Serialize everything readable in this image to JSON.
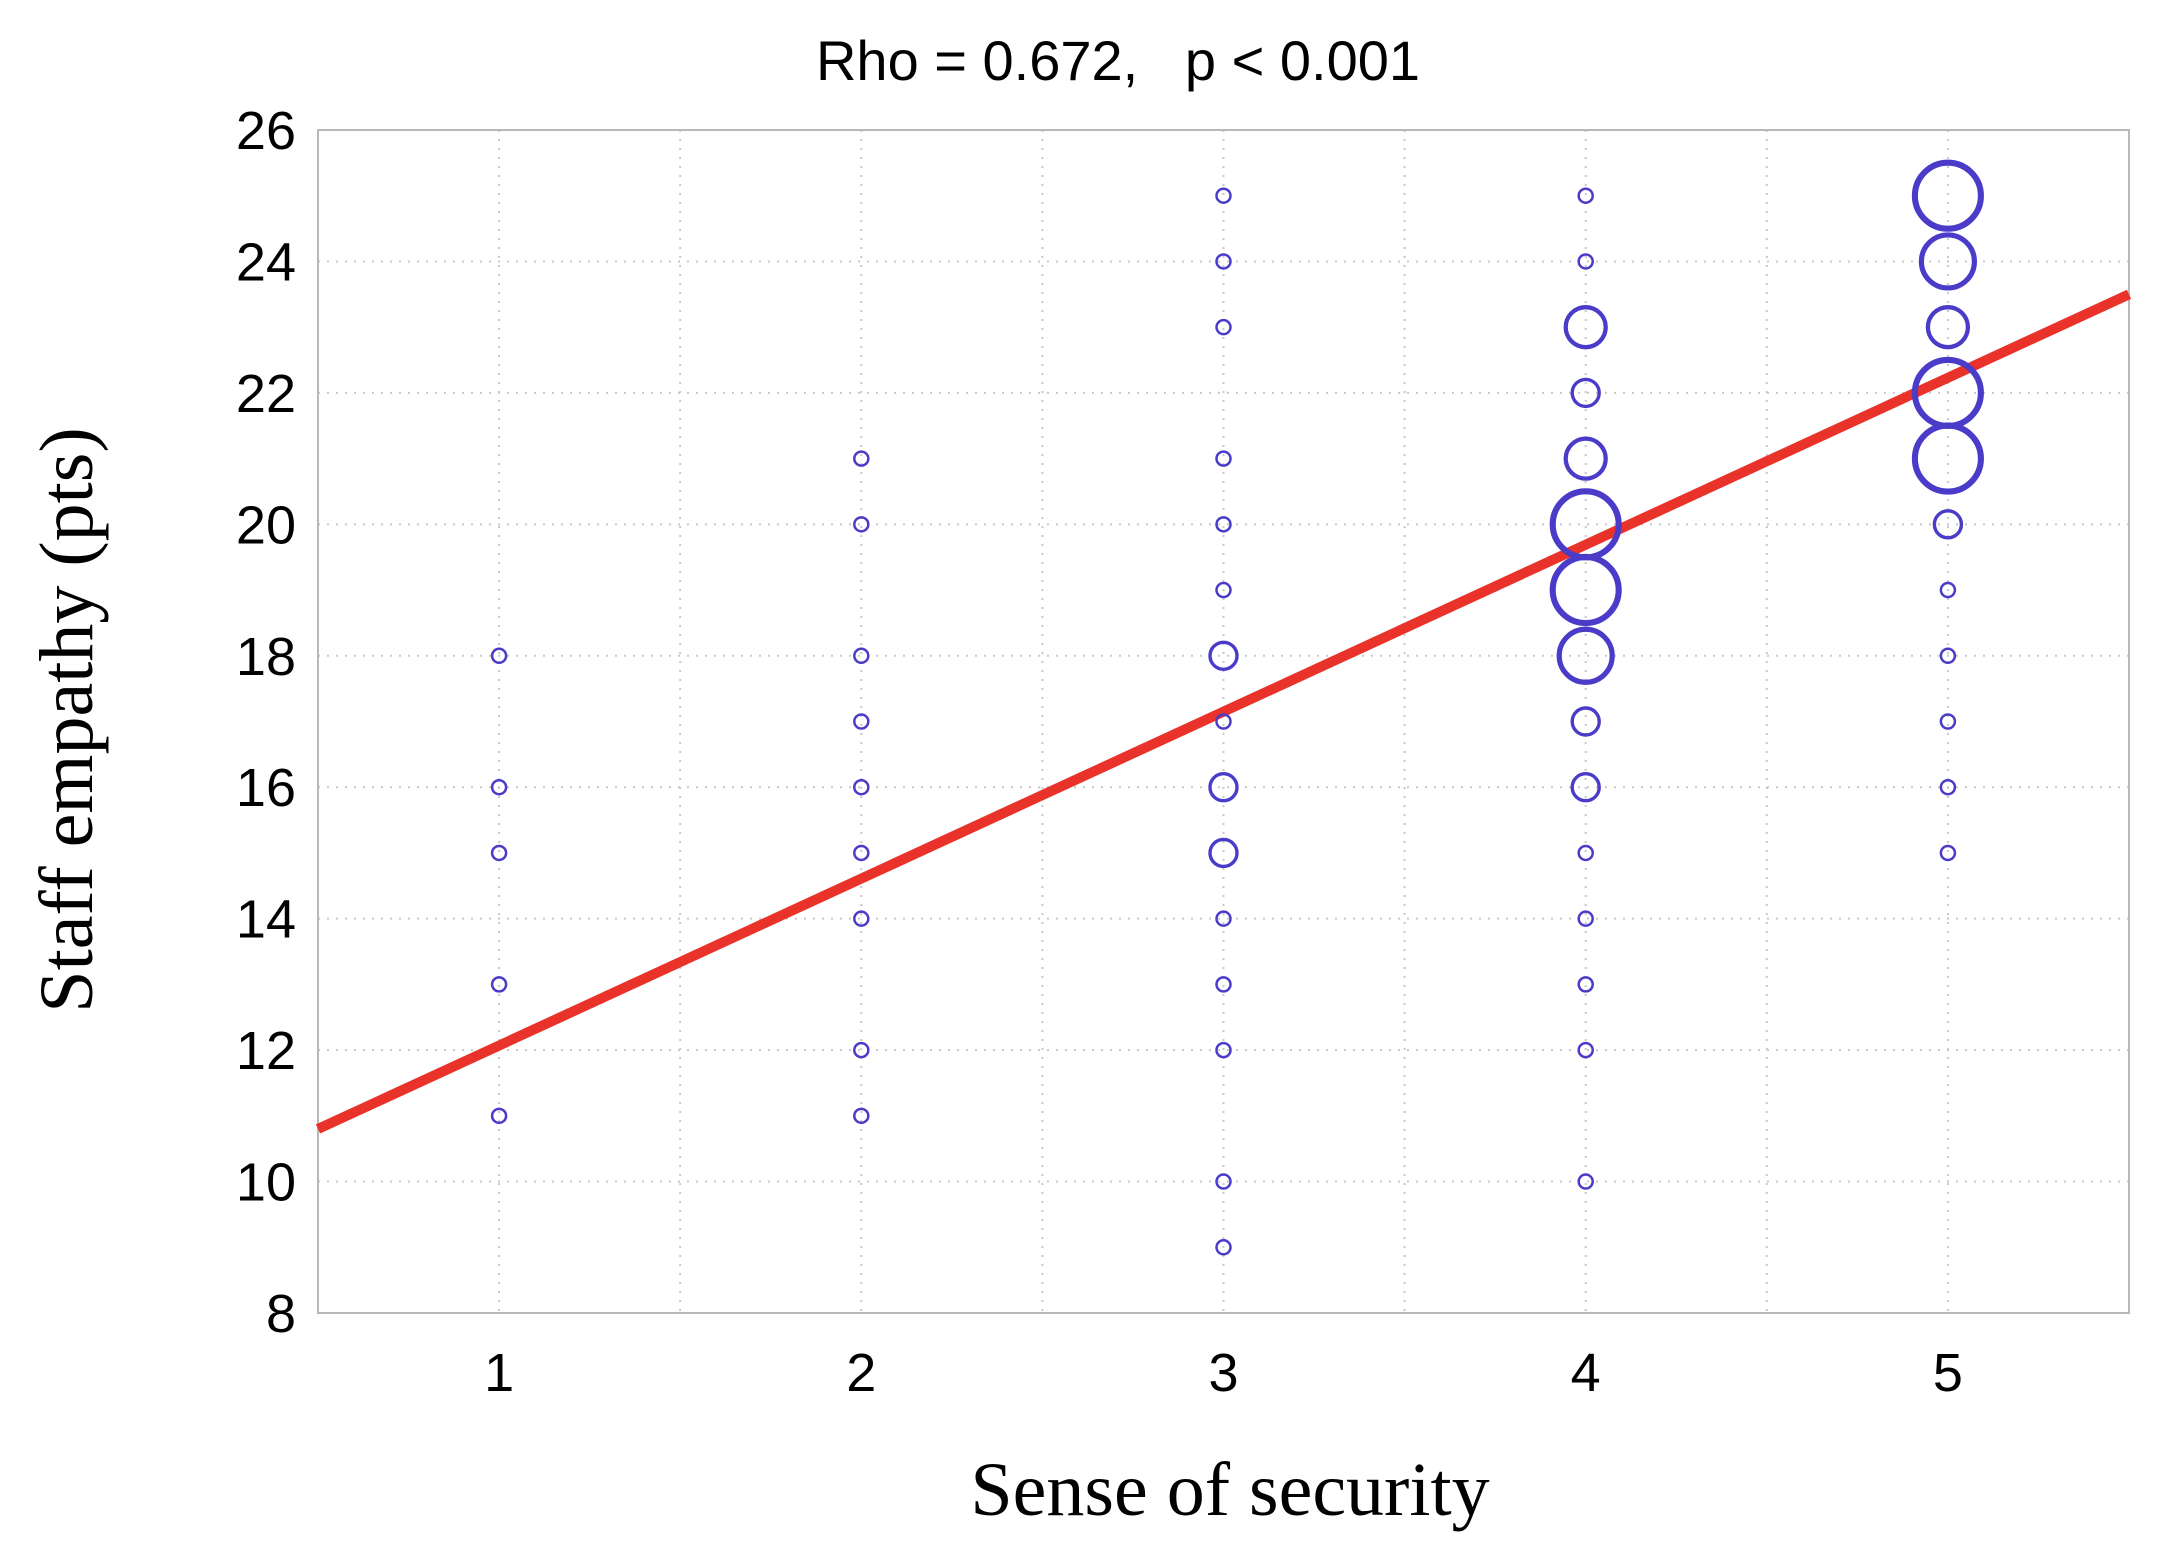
{
  "chart_data": {
    "type": "scatter",
    "title": "Rho = 0.672,   p < 0.001",
    "xlabel": "Sense of security",
    "ylabel": "Staff empathy (pts)",
    "xlim": [
      0.5,
      5.5
    ],
    "ylim": [
      8,
      26
    ],
    "xticks": [
      1,
      2,
      3,
      4,
      5
    ],
    "yticks": [
      8,
      10,
      12,
      14,
      16,
      18,
      20,
      22,
      24,
      26
    ],
    "grid": true,
    "points": [
      {
        "x": 1,
        "y": 18,
        "n": 1
      },
      {
        "x": 1,
        "y": 16,
        "n": 1
      },
      {
        "x": 1,
        "y": 15,
        "n": 1
      },
      {
        "x": 1,
        "y": 13,
        "n": 1
      },
      {
        "x": 1,
        "y": 11,
        "n": 1
      },
      {
        "x": 2,
        "y": 21,
        "n": 1
      },
      {
        "x": 2,
        "y": 20,
        "n": 1
      },
      {
        "x": 2,
        "y": 18,
        "n": 1
      },
      {
        "x": 2,
        "y": 17,
        "n": 1
      },
      {
        "x": 2,
        "y": 16,
        "n": 1
      },
      {
        "x": 2,
        "y": 15,
        "n": 1
      },
      {
        "x": 2,
        "y": 14,
        "n": 1
      },
      {
        "x": 2,
        "y": 12,
        "n": 1
      },
      {
        "x": 2,
        "y": 11,
        "n": 1
      },
      {
        "x": 3,
        "y": 25,
        "n": 1
      },
      {
        "x": 3,
        "y": 24,
        "n": 1
      },
      {
        "x": 3,
        "y": 23,
        "n": 1
      },
      {
        "x": 3,
        "y": 21,
        "n": 1
      },
      {
        "x": 3,
        "y": 20,
        "n": 1
      },
      {
        "x": 3,
        "y": 19,
        "n": 1
      },
      {
        "x": 3,
        "y": 18,
        "n": 2
      },
      {
        "x": 3,
        "y": 17,
        "n": 1
      },
      {
        "x": 3,
        "y": 16,
        "n": 2
      },
      {
        "x": 3,
        "y": 15,
        "n": 2
      },
      {
        "x": 3,
        "y": 14,
        "n": 1
      },
      {
        "x": 3,
        "y": 13,
        "n": 1
      },
      {
        "x": 3,
        "y": 12,
        "n": 1
      },
      {
        "x": 3,
        "y": 10,
        "n": 1
      },
      {
        "x": 3,
        "y": 9,
        "n": 1
      },
      {
        "x": 4,
        "y": 25,
        "n": 1
      },
      {
        "x": 4,
        "y": 24,
        "n": 1
      },
      {
        "x": 4,
        "y": 23,
        "n": 3
      },
      {
        "x": 4,
        "y": 22,
        "n": 2
      },
      {
        "x": 4,
        "y": 21,
        "n": 3
      },
      {
        "x": 4,
        "y": 20,
        "n": 5
      },
      {
        "x": 4,
        "y": 19,
        "n": 5
      },
      {
        "x": 4,
        "y": 18,
        "n": 4
      },
      {
        "x": 4,
        "y": 17,
        "n": 2
      },
      {
        "x": 4,
        "y": 16,
        "n": 2
      },
      {
        "x": 4,
        "y": 15,
        "n": 1
      },
      {
        "x": 4,
        "y": 14,
        "n": 1
      },
      {
        "x": 4,
        "y": 13,
        "n": 1
      },
      {
        "x": 4,
        "y": 12,
        "n": 1
      },
      {
        "x": 4,
        "y": 10,
        "n": 1
      },
      {
        "x": 5,
        "y": 25,
        "n": 5
      },
      {
        "x": 5,
        "y": 24,
        "n": 4
      },
      {
        "x": 5,
        "y": 23,
        "n": 3
      },
      {
        "x": 5,
        "y": 22,
        "n": 5
      },
      {
        "x": 5,
        "y": 21,
        "n": 5
      },
      {
        "x": 5,
        "y": 20,
        "n": 2
      },
      {
        "x": 5,
        "y": 19,
        "n": 1
      },
      {
        "x": 5,
        "y": 18,
        "n": 1
      },
      {
        "x": 5,
        "y": 17,
        "n": 1
      },
      {
        "x": 5,
        "y": 16,
        "n": 1
      },
      {
        "x": 5,
        "y": 15,
        "n": 1
      }
    ],
    "fit_line": {
      "x": [
        0.5,
        5.5
      ],
      "y": [
        10.8,
        23.5
      ]
    },
    "colors": {
      "points": "#4a3cc8",
      "fit_line": "#e8322a",
      "grid": "#c8c8c8"
    }
  }
}
